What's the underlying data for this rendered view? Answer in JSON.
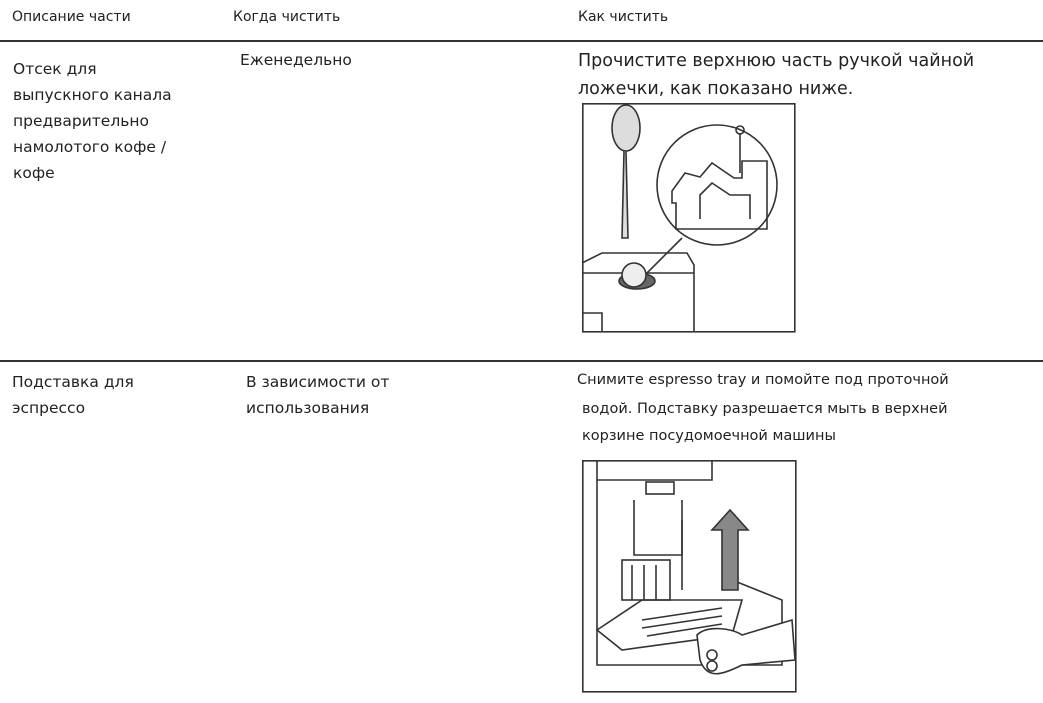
{
  "header": {
    "columns": [
      "Описание части",
      "Когда чистить",
      "Как чистить"
    ]
  },
  "rows": [
    {
      "part": [
        "Отсек для",
        "выпускного канала",
        "предварительно",
        "намолотого кофе /",
        "кофе"
      ],
      "when": [
        "Еженедельно"
      ],
      "how": [
        "Прочистите верхнюю часть ручкой чайной",
        "ложечки, как показано ниже."
      ]
    },
    {
      "part": [
        "Подставка для",
        "эспрессо"
      ],
      "when": [
        "В зависимости от",
        "использования"
      ],
      "how": [
        "Снимите espresso tray и помойте под проточной",
        "водой. Подставку разрешается мыть в верхней",
        "корзине посудомоечной машины"
      ]
    }
  ]
}
